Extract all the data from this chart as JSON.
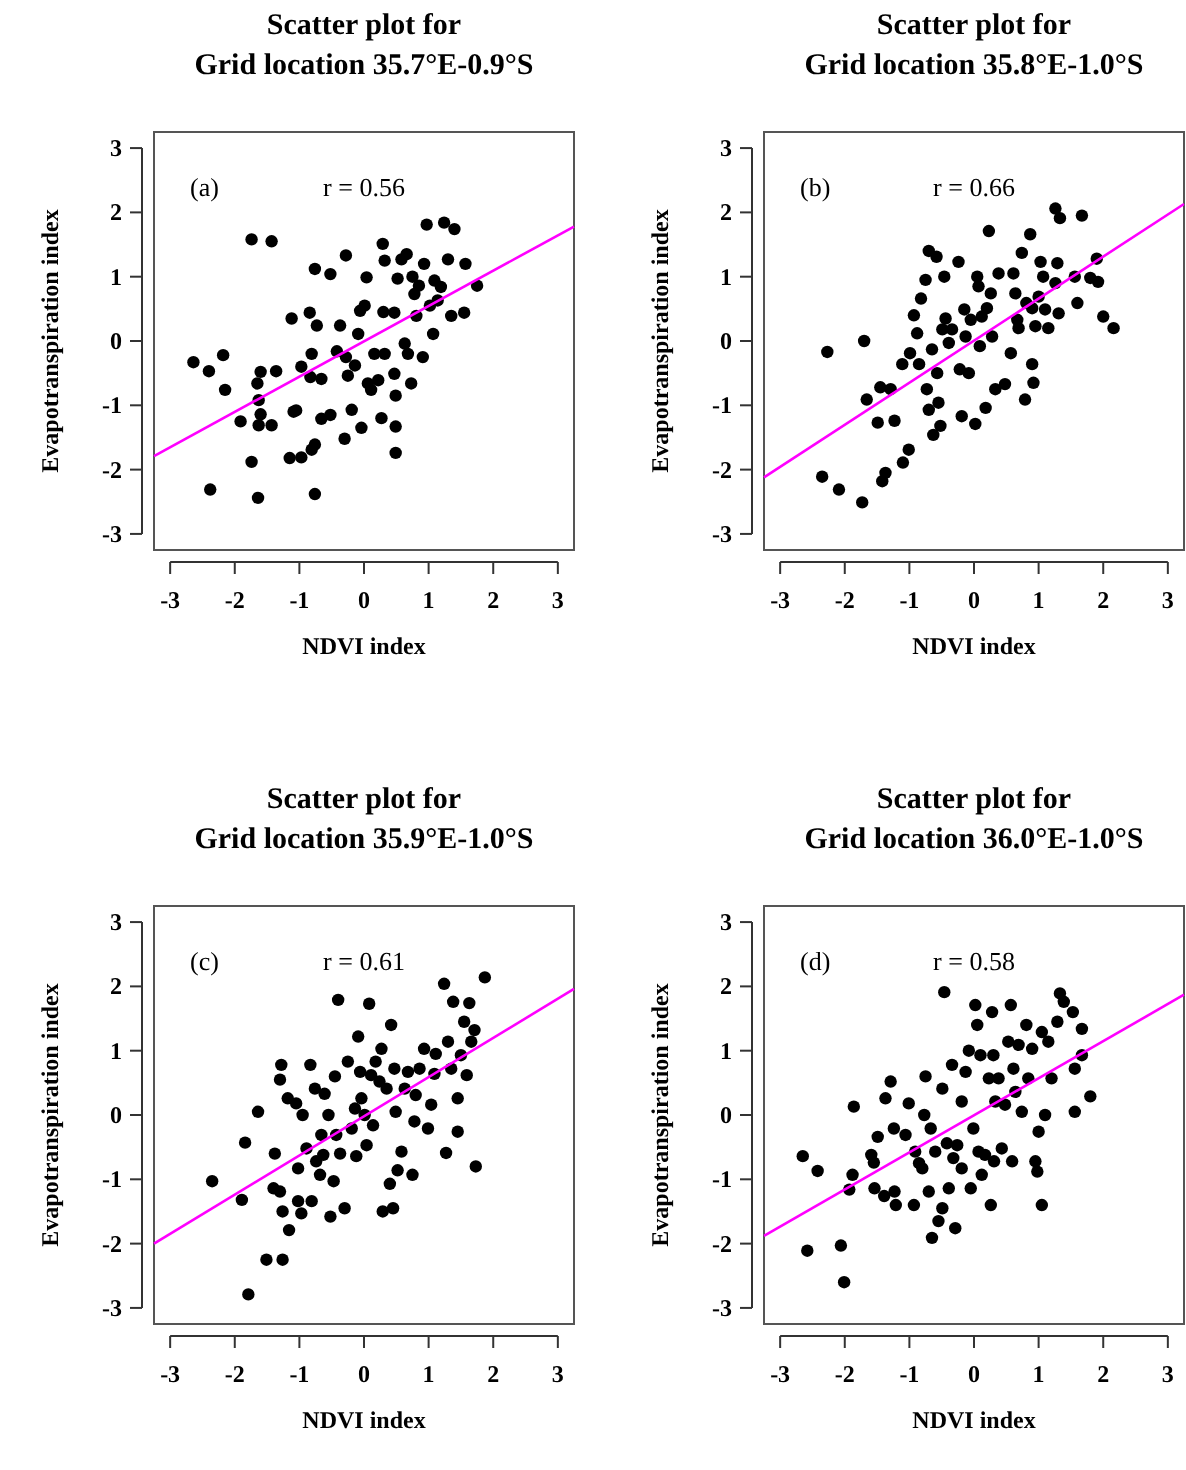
{
  "chart_data": [
    {
      "type": "scatter",
      "title": "Scatter plot for\nGrid location 35.7°E-0.9°S",
      "xlabel": "NDVI index",
      "ylabel": "Evapotranspiration index",
      "xlim": [
        -3.25,
        3.25
      ],
      "ylim": [
        -3.25,
        3.25
      ],
      "xticks": [
        -3,
        -2,
        -1,
        0,
        1,
        2,
        3
      ],
      "yticks": [
        -3,
        -2,
        -1,
        0,
        1,
        2,
        3
      ],
      "grid": false,
      "marker": "circle",
      "annotations": [
        "(a)",
        "r = 0.56"
      ],
      "series": [
        {
          "color": "#000000",
          "x": [
            -2.64,
            -2.4,
            -2.18,
            -2.15,
            -2.38,
            -1.91,
            -1.74,
            -1.43,
            -1.74,
            -1.64,
            -1.6,
            -1.65,
            -1.63,
            -1.6,
            -1.63,
            -1.43,
            -1.36,
            -1.12,
            -1.05,
            -1.09,
            -1.15,
            -0.97,
            -0.97,
            -0.84,
            -0.81,
            -0.83,
            -0.76,
            -0.73,
            -0.76,
            -0.81,
            -0.76,
            -0.66,
            -0.66,
            -0.52,
            -0.52,
            -0.42,
            -0.37,
            -0.28,
            -0.28,
            -0.25,
            -0.19,
            -0.3,
            -0.04,
            -0.14,
            -0.09,
            -0.06,
            0.04,
            0.01,
            0.06,
            0.11,
            0.16,
            0.22,
            0.27,
            0.29,
            0.32,
            0.3,
            0.32,
            0.47,
            0.49,
            0.49,
            0.49,
            0.47,
            0.52,
            0.58,
            0.63,
            0.68,
            0.66,
            0.73,
            0.75,
            0.78,
            0.81,
            0.91,
            0.93,
            0.97,
            1.02,
            1.07,
            1.09,
            1.14,
            1.24,
            1.3,
            1.35,
            1.4,
            1.55,
            1.57,
            1.75,
            1.19,
            0.85
          ],
          "values": [
            -0.33,
            -0.47,
            -0.22,
            -0.76,
            -2.31,
            -1.25,
            1.58,
            1.55,
            -1.88,
            -2.44,
            -0.48,
            -0.66,
            -0.92,
            -1.14,
            -1.31,
            -1.31,
            -0.47,
            0.35,
            -1.08,
            -1.1,
            -1.82,
            -1.81,
            -0.4,
            0.44,
            -0.2,
            -0.56,
            1.12,
            0.24,
            -1.61,
            -1.69,
            -2.38,
            -1.21,
            -0.59,
            1.04,
            -1.15,
            -0.16,
            0.24,
            1.33,
            -0.25,
            -0.54,
            -1.07,
            -1.52,
            -1.35,
            -0.38,
            0.11,
            0.47,
            0.99,
            0.55,
            -0.66,
            -0.76,
            -0.2,
            -0.61,
            -1.2,
            1.51,
            1.25,
            0.45,
            -0.2,
            0.44,
            -0.85,
            -1.33,
            -1.74,
            -0.51,
            0.97,
            1.27,
            -0.04,
            -0.2,
            1.35,
            -0.66,
            1.0,
            0.73,
            0.39,
            -0.25,
            1.2,
            1.81,
            0.55,
            0.11,
            0.94,
            0.63,
            1.84,
            1.27,
            0.39,
            1.74,
            0.44,
            1.2,
            0.86,
            0.84,
            0.86
          ]
        },
        {
          "type": "line",
          "color": "#ff00ff",
          "marker": "none",
          "x": [
            -3.25,
            3.25
          ],
          "values": [
            -1.79,
            1.78
          ]
        }
      ]
    },
    {
      "type": "scatter",
      "title": "Scatter plot for\nGrid location 35.8°E-1.0°S",
      "xlabel": "NDVI index",
      "ylabel": "Evapotranspiration index",
      "xlim": [
        -3.25,
        3.25
      ],
      "ylim": [
        -3.25,
        3.25
      ],
      "xticks": [
        -3,
        -2,
        -1,
        0,
        1,
        2,
        3
      ],
      "yticks": [
        -3,
        -2,
        -1,
        0,
        1,
        2,
        3
      ],
      "grid": false,
      "marker": "circle",
      "annotations": [
        "(b)",
        "r = 0.66"
      ],
      "series": [
        {
          "color": "#000000",
          "x": [
            -2.27,
            -1.7,
            -1.66,
            -2.35,
            -2.09,
            -1.73,
            -1.45,
            -1.49,
            -1.42,
            -1.37,
            -1.29,
            -1.23,
            -1.1,
            -1.01,
            -1.11,
            -0.99,
            -0.93,
            -0.88,
            -0.85,
            -0.82,
            -0.75,
            -0.73,
            -0.7,
            -0.7,
            -0.65,
            -0.63,
            -0.58,
            -0.57,
            -0.55,
            -0.52,
            -0.49,
            -0.46,
            -0.44,
            -0.39,
            -0.34,
            -0.24,
            -0.22,
            -0.19,
            -0.15,
            -0.13,
            -0.08,
            -0.05,
            0.02,
            0.05,
            0.07,
            0.09,
            0.12,
            0.18,
            0.2,
            0.23,
            0.26,
            0.28,
            0.33,
            0.38,
            0.48,
            0.57,
            0.61,
            0.64,
            0.67,
            0.74,
            0.79,
            0.81,
            0.87,
            0.9,
            0.92,
            0.95,
            1.0,
            1.03,
            1.07,
            1.1,
            1.15,
            1.26,
            1.29,
            1.31,
            1.26,
            1.33,
            1.56,
            1.6,
            1.67,
            1.8,
            1.9,
            1.92,
            2.0,
            2.16,
            0.69,
            0.9
          ],
          "values": [
            -0.17,
            0,
            -0.91,
            -2.11,
            -2.31,
            -2.51,
            -0.72,
            -1.27,
            -2.18,
            -2.05,
            -0.75,
            -1.24,
            -1.89,
            -1.69,
            -0.36,
            -0.19,
            0.4,
            0.12,
            -0.36,
            0.66,
            0.95,
            -0.75,
            1.4,
            -1.07,
            -0.13,
            -1.46,
            1.31,
            -0.5,
            -0.96,
            -1.32,
            0.18,
            1.0,
            0.35,
            -0.03,
            0.18,
            1.23,
            -0.44,
            -1.17,
            0.49,
            0.07,
            -0.5,
            0.33,
            -1.29,
            1.0,
            0.85,
            -0.08,
            0.38,
            -1.04,
            0.51,
            1.71,
            0.74,
            0.07,
            -0.75,
            1.05,
            -0.67,
            -0.19,
            1.05,
            0.74,
            0.33,
            1.37,
            -0.91,
            0.59,
            1.66,
            -0.36,
            -0.65,
            0.23,
            0.69,
            1.23,
            1.0,
            0.49,
            0.2,
            0.9,
            1.21,
            0.43,
            2.06,
            1.91,
            1.0,
            0.59,
            1.95,
            0.98,
            1.28,
            0.92,
            0.38,
            0.2,
            0.2,
            0.51
          ]
        },
        {
          "type": "line",
          "color": "#ff00ff",
          "marker": "none",
          "x": [
            -3.25,
            3.25
          ],
          "values": [
            -2.12,
            2.13
          ]
        }
      ]
    },
    {
      "type": "scatter",
      "title": "Scatter plot for\nGrid location 35.9°E-1.0°S",
      "xlabel": "NDVI index",
      "ylabel": "Evapotranspiration index",
      "xlim": [
        -3.25,
        3.25
      ],
      "ylim": [
        -3.25,
        3.25
      ],
      "xticks": [
        -3,
        -2,
        -1,
        0,
        1,
        2,
        3
      ],
      "yticks": [
        -3,
        -2,
        -1,
        0,
        1,
        2,
        3
      ],
      "grid": false,
      "marker": "circle",
      "annotations": [
        "(c)",
        "r = 0.61"
      ],
      "series": [
        {
          "color": "#000000",
          "x": [
            -2.35,
            -1.84,
            -1.89,
            -1.64,
            -1.79,
            -1.51,
            -1.26,
            -1.38,
            -1.4,
            -1.3,
            -1.28,
            -1.3,
            -1.26,
            -1.16,
            -1.18,
            -1.05,
            -1.02,
            -1.02,
            -0.97,
            -0.95,
            -0.89,
            -0.83,
            -0.81,
            -0.76,
            -0.74,
            -0.68,
            -0.66,
            -0.61,
            -0.63,
            -0.55,
            -0.52,
            -0.47,
            -0.45,
            -0.43,
            -0.4,
            -0.37,
            -0.3,
            -0.25,
            -0.19,
            -0.14,
            -0.12,
            -0.09,
            -0.06,
            -0.04,
            0.01,
            0.04,
            0.08,
            0.11,
            0.14,
            0.18,
            0.24,
            0.27,
            0.29,
            0.35,
            0.4,
            0.42,
            0.45,
            0.47,
            0.49,
            0.52,
            0.58,
            0.63,
            0.68,
            0.75,
            0.78,
            0.8,
            0.86,
            0.93,
            0.99,
            1.04,
            1.09,
            1.11,
            1.24,
            1.27,
            1.3,
            1.35,
            1.38,
            1.45,
            1.5,
            1.55,
            1.59,
            1.63,
            1.66,
            1.71,
            1.73,
            1.87,
            1.45
          ],
          "values": [
            -1.03,
            -0.43,
            -1.32,
            0.05,
            -2.79,
            -2.25,
            -2.25,
            -0.6,
            -1.14,
            -1.19,
            0.78,
            0.55,
            -1.5,
            -1.79,
            0.26,
            0.18,
            -0.83,
            -1.34,
            -1.53,
            0,
            -0.52,
            0.78,
            -1.34,
            0.41,
            -0.72,
            -0.93,
            -0.31,
            0.33,
            -0.62,
            0,
            -1.58,
            -1.03,
            0.6,
            -0.31,
            1.79,
            -0.6,
            -1.45,
            0.83,
            -0.21,
            0.1,
            -0.64,
            1.22,
            0.67,
            0.26,
            0,
            -0.47,
            1.73,
            0.62,
            -0.16,
            0.83,
            0.52,
            1.03,
            -1.5,
            0.41,
            -1.07,
            1.4,
            -1.45,
            0.72,
            0.05,
            -0.86,
            -0.57,
            0.41,
            0.67,
            -0.93,
            -0.1,
            0.31,
            0.72,
            1.03,
            -0.21,
            0.16,
            0.64,
            0.95,
            2.04,
            -0.59,
            1.14,
            0.72,
            1.76,
            0.26,
            0.93,
            1.45,
            0.62,
            1.74,
            1.14,
            1.32,
            -0.8,
            2.14,
            -0.26
          ]
        },
        {
          "type": "line",
          "color": "#ff00ff",
          "marker": "none",
          "x": [
            -3.25,
            3.25
          ],
          "values": [
            -2.0,
            1.96
          ]
        }
      ]
    },
    {
      "type": "scatter",
      "title": "Scatter plot for\nGrid location 36.0°E-1.0°S",
      "xlabel": "NDVI index",
      "ylabel": "Evapotranspiration index",
      "xlim": [
        -3.25,
        3.25
      ],
      "ylim": [
        -3.25,
        3.25
      ],
      "xticks": [
        -3,
        -2,
        -1,
        0,
        1,
        2,
        3
      ],
      "yticks": [
        -3,
        -2,
        -1,
        0,
        1,
        2,
        3
      ],
      "grid": false,
      "marker": "circle",
      "annotations": [
        "(d)",
        "r = 0.58"
      ],
      "series": [
        {
          "color": "#000000",
          "x": [
            -2.65,
            -2.42,
            -2.58,
            -2.06,
            -2.01,
            -1.86,
            -1.88,
            -1.93,
            -1.59,
            -1.55,
            -1.49,
            -1.54,
            -1.39,
            -1.37,
            -1.29,
            -1.24,
            -1.23,
            -1.21,
            -1.06,
            -1.01,
            -0.93,
            -0.91,
            -0.85,
            -0.8,
            -0.77,
            -0.75,
            -0.7,
            -0.67,
            -0.65,
            -0.6,
            -0.55,
            -0.49,
            -0.46,
            -0.49,
            -0.42,
            -0.39,
            -0.34,
            -0.32,
            -0.29,
            -0.26,
            -0.19,
            -0.19,
            -0.13,
            -0.08,
            -0.05,
            -0.01,
            0.02,
            0.05,
            0.07,
            0.1,
            0.12,
            0.17,
            0.23,
            0.26,
            0.28,
            0.3,
            0.31,
            0.33,
            0.38,
            0.43,
            0.48,
            0.53,
            0.57,
            0.59,
            0.61,
            0.64,
            0.69,
            0.74,
            0.81,
            0.84,
            0.9,
            0.95,
            0.98,
            1.0,
            1.05,
            1.05,
            1.1,
            1.15,
            1.2,
            1.29,
            1.33,
            1.39,
            1.56,
            1.56,
            1.53,
            1.67,
            1.67,
            1.8
          ],
          "values": [
            -0.64,
            -0.87,
            -2.11,
            -2.03,
            -2.6,
            0.13,
            -0.93,
            -1.16,
            -0.62,
            -0.74,
            -0.34,
            -1.14,
            -1.26,
            0.26,
            0.52,
            -0.21,
            -1.19,
            -1.4,
            -0.31,
            0.18,
            -1.4,
            -0.57,
            -0.75,
            -0.83,
            0,
            0.6,
            -1.19,
            -0.21,
            -1.91,
            -0.57,
            -1.65,
            -1.45,
            1.91,
            0.41,
            -0.44,
            -1.14,
            0.78,
            -0.67,
            -1.76,
            -0.47,
            0.21,
            -0.83,
            0.67,
            1.0,
            -1.14,
            -0.21,
            1.71,
            1.4,
            -0.57,
            0.93,
            -0.93,
            -0.62,
            0.57,
            -1.4,
            1.6,
            0.93,
            -0.72,
            0.21,
            0.57,
            -0.52,
            0.16,
            1.14,
            1.71,
            -0.72,
            0.72,
            0.36,
            1.09,
            0.05,
            1.4,
            0.57,
            1.03,
            -0.72,
            -0.88,
            -0.26,
            -1.4,
            1.29,
            0,
            1.14,
            0.57,
            1.45,
            1.89,
            1.76,
            0.72,
            0.05,
            1.6,
            1.34,
            0.93,
            0.29
          ]
        },
        {
          "type": "line",
          "color": "#ff00ff",
          "marker": "none",
          "x": [
            -3.25,
            3.25
          ],
          "values": [
            -1.88,
            1.87
          ]
        }
      ]
    }
  ]
}
